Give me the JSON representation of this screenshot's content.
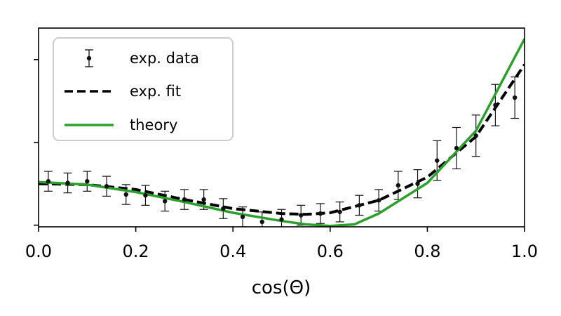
{
  "chart_data": {
    "type": "scatter",
    "xlabel": "cos(Θ)",
    "ylabel": "",
    "xlim": [
      0.0,
      1.0
    ],
    "ylim": [
      -0.02,
      2.38
    ],
    "x_ticks": [
      "0.0",
      "0.2",
      "0.4",
      "0.6",
      "0.8",
      "1.0"
    ],
    "y_ticks_unlabeled": [
      0,
      1,
      2
    ],
    "grid": false,
    "legend_position": "top-left",
    "colors": {
      "exp_data": "#111111",
      "exp_fit": "#000000",
      "theory": "#2ca02c"
    },
    "series": [
      {
        "name": "exp. data",
        "kind": "errorbar",
        "x": [
          0.02,
          0.06,
          0.1,
          0.14,
          0.18,
          0.22,
          0.26,
          0.3,
          0.34,
          0.38,
          0.42,
          0.46,
          0.5,
          0.54,
          0.58,
          0.62,
          0.66,
          0.7,
          0.74,
          0.78,
          0.82,
          0.86,
          0.9,
          0.94,
          0.98
        ],
        "y": [
          0.53,
          0.51,
          0.53,
          0.47,
          0.37,
          0.36,
          0.29,
          0.31,
          0.31,
          0.2,
          0.1,
          0.04,
          0.07,
          0.12,
          0.14,
          0.16,
          0.24,
          0.3,
          0.48,
          0.5,
          0.78,
          0.93,
          1.08,
          1.45,
          1.54
        ],
        "yerr": [
          0.12,
          0.12,
          0.12,
          0.12,
          0.12,
          0.12,
          0.12,
          0.12,
          0.12,
          0.12,
          0.12,
          0.12,
          0.12,
          0.12,
          0.12,
          0.12,
          0.12,
          0.13,
          0.17,
          0.17,
          0.24,
          0.25,
          0.25,
          0.25,
          0.25
        ]
      },
      {
        "name": "exp. fit",
        "kind": "line-dashed",
        "x": [
          0.0,
          0.1,
          0.2,
          0.3,
          0.4,
          0.5,
          0.55,
          0.6,
          0.7,
          0.8,
          0.9,
          1.0
        ],
        "y": [
          0.5,
          0.49,
          0.43,
          0.31,
          0.2,
          0.14,
          0.13,
          0.15,
          0.3,
          0.58,
          1.07,
          1.94
        ]
      },
      {
        "name": "theory",
        "kind": "line",
        "x": [
          0.0,
          0.1,
          0.2,
          0.3,
          0.4,
          0.5,
          0.55,
          0.6,
          0.65,
          0.7,
          0.8,
          0.9,
          1.0
        ],
        "y": [
          0.52,
          0.49,
          0.4,
          0.28,
          0.15,
          0.05,
          0.01,
          -0.01,
          0.01,
          0.14,
          0.51,
          1.14,
          2.25
        ]
      }
    ]
  }
}
